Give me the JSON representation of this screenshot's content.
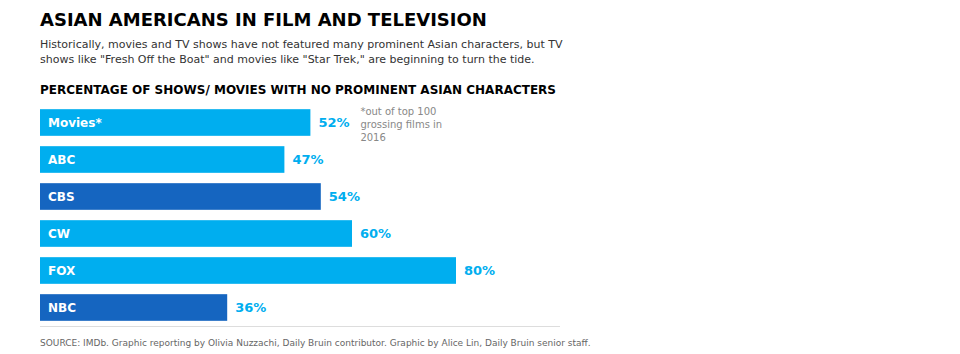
{
  "chart_data": {
    "type": "bar",
    "orientation": "horizontal",
    "title": "ASIAN AMERICANS IN FILM AND TELEVISION",
    "subtitle": "Historically, movies and TV shows have not featured many prominent Asian characters, but TV\nshows like \"Fresh Off the Boat\" and movies like \"Star Trek,\" are beginning to turn the tide.",
    "annotations": [
      "PERCENTAGE OF SHOWS/ MOVIES WITH NO PROMINENT ASIAN CHARACTERS",
      "*out of top 100\ngrossing films in\n2016",
      "SOURCE: IMDb. Graphic reporting by Olivia Nuzzachi, Daily Bruin contributor. Graphic by Alice Lin, Daily Bruin senior staff."
    ],
    "categories": [
      "Movies*",
      "ABC",
      "CBS",
      "CW",
      "FOX",
      "NBC"
    ],
    "values": [
      52,
      47,
      54,
      60,
      80,
      36
    ],
    "value_labels": [
      "52%",
      "47%",
      "54%",
      "60%",
      "80%",
      "36%"
    ],
    "colors": [
      "#00AEEF",
      "#00AEEF",
      "#1565C0",
      "#00AEEF",
      "#00AEEF",
      "#1565C0"
    ],
    "data_labels": true,
    "xlim": [
      0,
      100
    ],
    "tick_labels": false,
    "grid": false
  }
}
